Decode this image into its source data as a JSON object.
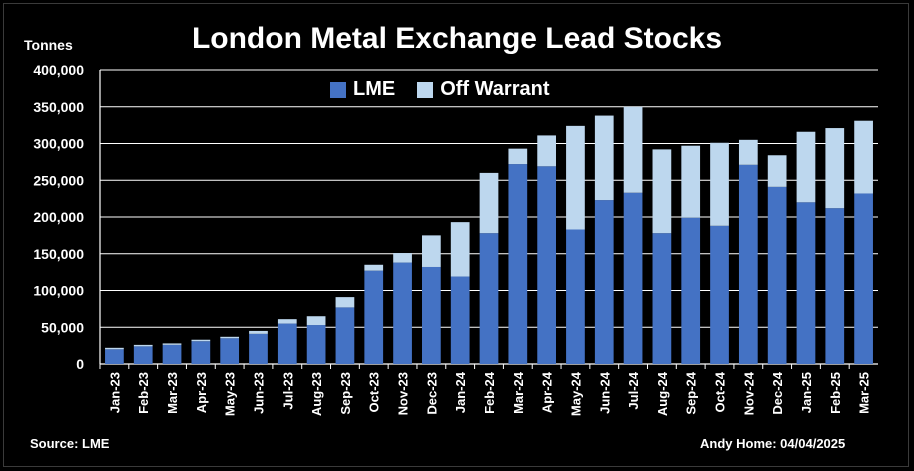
{
  "chart_data": {
    "type": "bar",
    "stacked": true,
    "title": "London Metal Exchange Lead Stocks",
    "ylabel": "Tonnes",
    "xlabel": "",
    "ylim": [
      0,
      400000
    ],
    "yticks": [
      0,
      50000,
      100000,
      150000,
      200000,
      250000,
      300000,
      350000,
      400000
    ],
    "ytick_labels": [
      "0",
      "50,000",
      "100,000",
      "150,000",
      "200,000",
      "250,000",
      "300,000",
      "350,000",
      "400,000"
    ],
    "grid": true,
    "legend_position": "top-center",
    "categories": [
      "Jan-23",
      "Feb-23",
      "Mar-23",
      "Apr-23",
      "May-23",
      "Jun-23",
      "Jul-23",
      "Aug-23",
      "Sep-23",
      "Oct-23",
      "Nov-23",
      "Dec-23",
      "Jan-24",
      "Feb-24",
      "Mar-24",
      "Apr-24",
      "May-24",
      "Jun-24",
      "Jul-24",
      "Aug-24",
      "Sep-24",
      "Oct-24",
      "Nov-24",
      "Dec-24",
      "Jan-25",
      "Feb-25",
      "Mar-25"
    ],
    "series": [
      {
        "name": "LME",
        "color": "#4472C4",
        "values": [
          20000,
          24000,
          26000,
          31000,
          35000,
          41000,
          55000,
          53000,
          77000,
          127000,
          138000,
          132000,
          119000,
          178000,
          272000,
          269000,
          183000,
          223000,
          233000,
          178000,
          199000,
          188000,
          271000,
          241000,
          220000,
          212000,
          232000
        ]
      },
      {
        "name": "Off Warrant",
        "color": "#BDD7EE",
        "values": [
          2000,
          2000,
          2000,
          2000,
          2000,
          4000,
          6000,
          12000,
          14000,
          8000,
          13000,
          43000,
          74000,
          82000,
          21000,
          42000,
          141000,
          115000,
          117000,
          114000,
          98000,
          113000,
          34000,
          43000,
          96000,
          109000,
          99000
        ]
      }
    ],
    "source": "Source: LME",
    "credit": "Andy Home: 04/04/2025"
  }
}
